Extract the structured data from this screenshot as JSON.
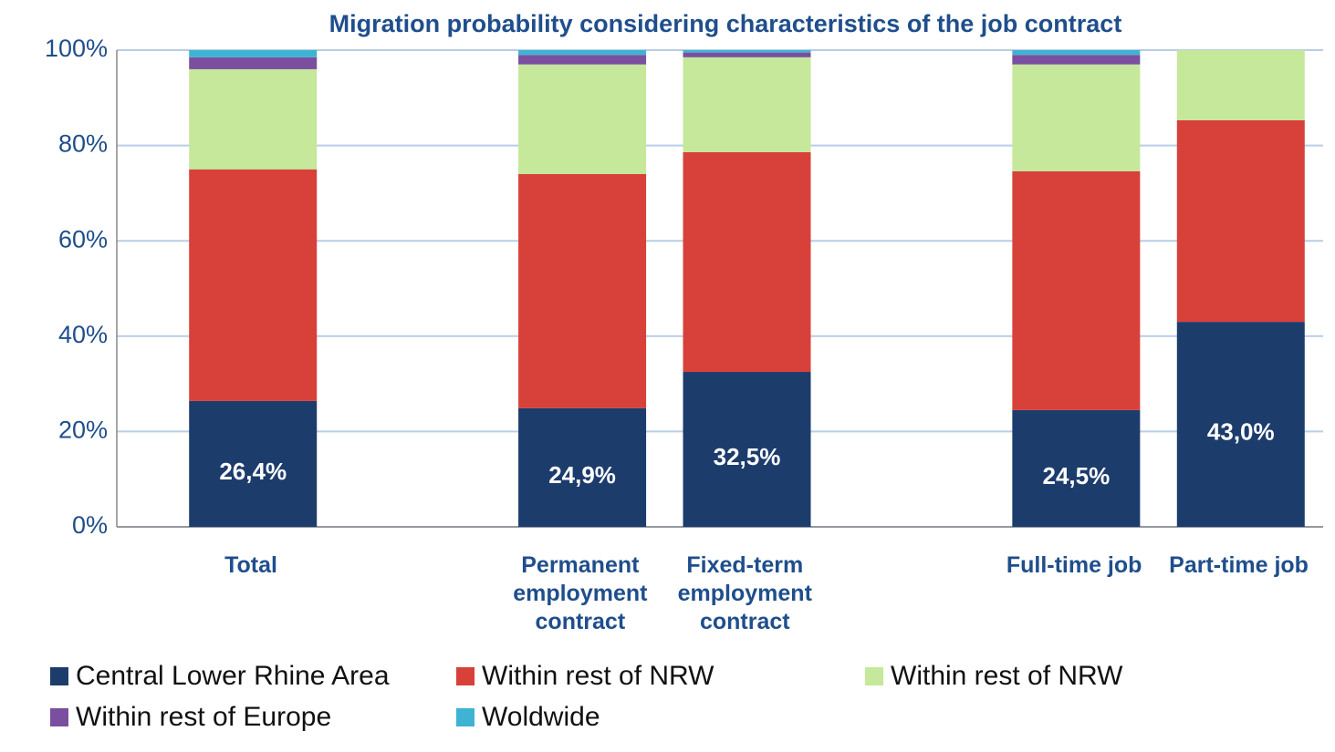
{
  "chart_data": {
    "type": "stacked_bar",
    "title": "Migration probability considering characteristics of the job contract",
    "categories": [
      "Total",
      null,
      "Permanent employment contract",
      "Fixed-term employment contract",
      null,
      "Full-time job",
      "Part-time job"
    ],
    "series": [
      {
        "name": "Central Lower Rhine Area",
        "color": "#1c3c6c",
        "values": [
          26.4,
          null,
          24.9,
          32.5,
          null,
          24.5,
          43.0
        ],
        "value_labels": [
          "26,4%",
          null,
          "24,9%",
          "32,5%",
          null,
          "24,5%",
          "43,0%"
        ]
      },
      {
        "name": "Within rest of NRW",
        "color": "#d8403a",
        "values": [
          48.6,
          null,
          49.1,
          46.1,
          null,
          50.1,
          42.3
        ]
      },
      {
        "name": "Within rest of NRW",
        "color": "#c5e89a",
        "values": [
          21.0,
          null,
          23.0,
          19.9,
          null,
          22.4,
          14.7
        ]
      },
      {
        "name": "Within rest of Europe",
        "color": "#7a4fa0",
        "values": [
          2.5,
          null,
          2.0,
          1.0,
          null,
          2.0,
          0
        ]
      },
      {
        "name": "Woldwide",
        "color": "#3fb3d3",
        "values": [
          1.5,
          null,
          1.0,
          0.5,
          null,
          1.0,
          0
        ]
      }
    ],
    "ylim": [
      0,
      100
    ],
    "yticks": [
      {
        "value": 0,
        "label": "0%"
      },
      {
        "value": 20,
        "label": "20%"
      },
      {
        "value": 40,
        "label": "40%"
      },
      {
        "value": 60,
        "label": "60%"
      },
      {
        "value": 80,
        "label": "80%"
      },
      {
        "value": 100,
        "label": "100%"
      }
    ],
    "grid": true
  }
}
